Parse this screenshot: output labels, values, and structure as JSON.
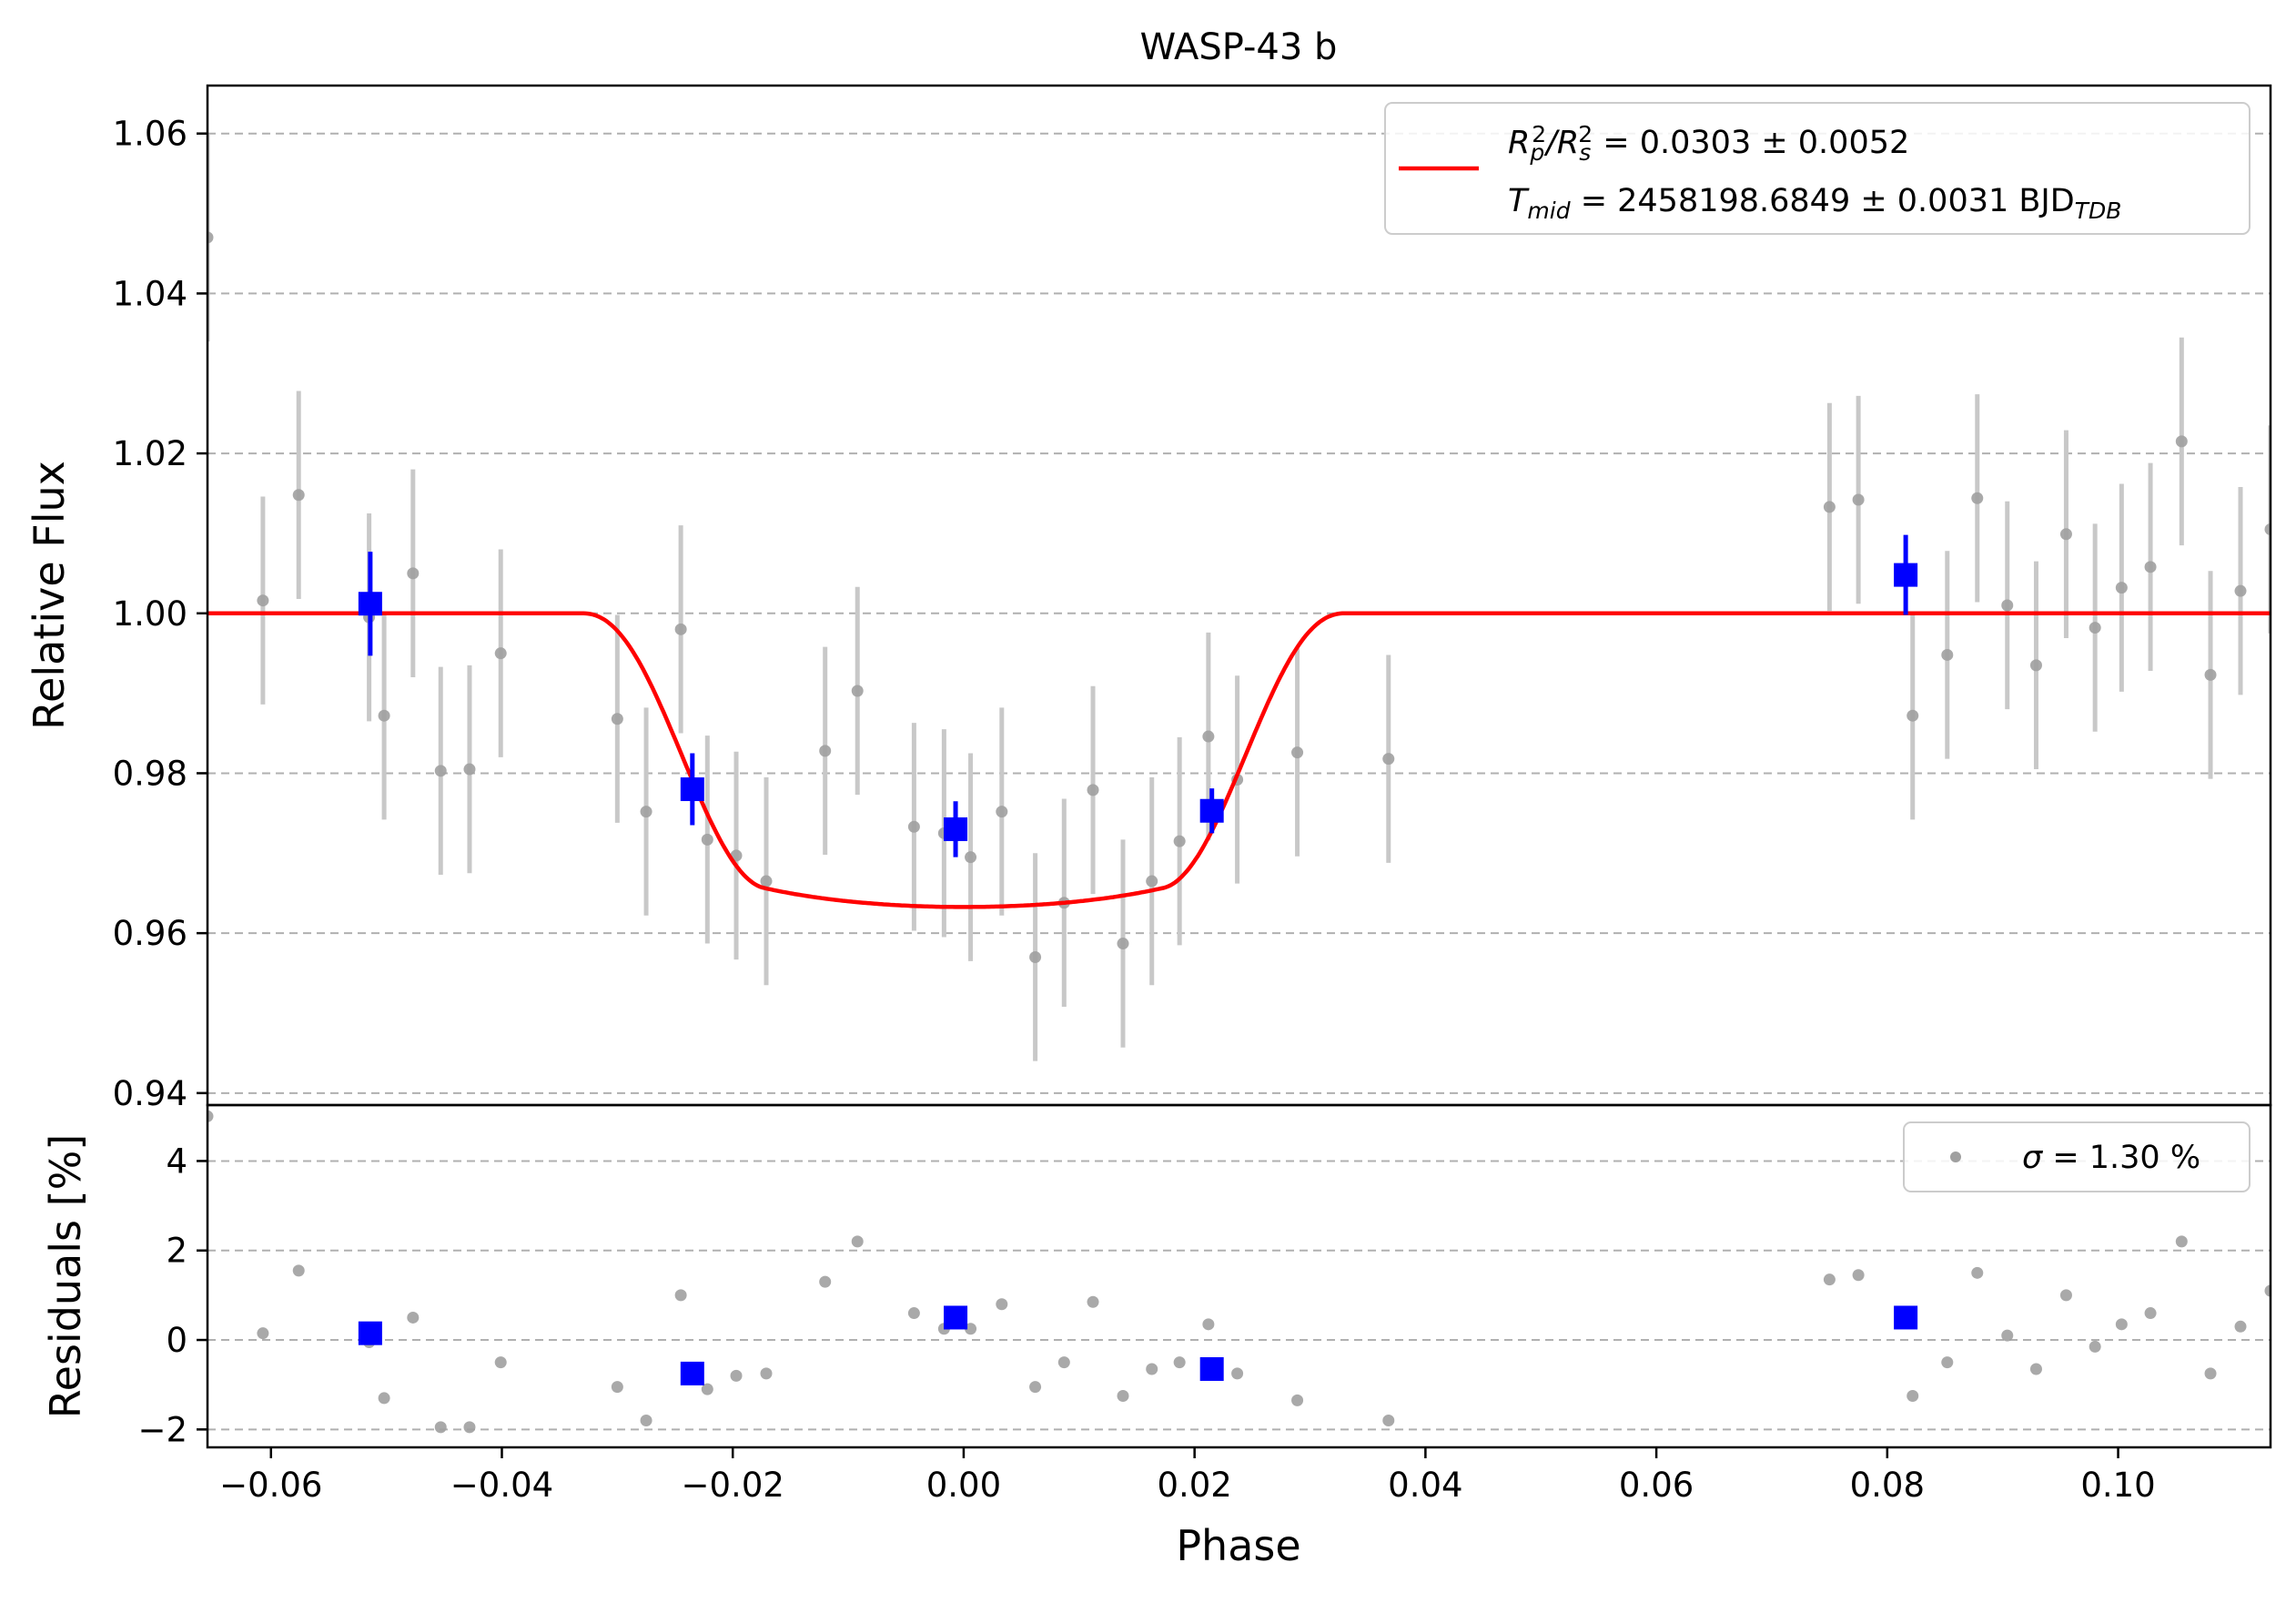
{
  "chart_data": {
    "type": "scatter",
    "title": "WASP-43 b",
    "xlabel": "Phase",
    "xlim": [
      -0.0655,
      0.1132
    ],
    "top_panel": {
      "ylabel": "Relative Flux",
      "ylim": [
        0.9385,
        1.066
      ],
      "yticks": [
        0.94,
        0.96,
        0.98,
        1.0,
        1.02,
        1.04,
        1.06
      ],
      "ytick_labels": [
        "0.94",
        "0.96",
        "0.98",
        "1.00",
        "1.02",
        "1.04",
        "1.06"
      ],
      "grid": "y-dashed",
      "legend": {
        "placement": "top-right",
        "color": "#ff0000",
        "line1": {
          "prefix": "R",
          "sub1": "p",
          "sup1": "2",
          "slash": "/R",
          "sub2": "s",
          "sup2": "2",
          "value": " = 0.0303 ± 0.0052"
        },
        "line2": {
          "prefix": "T",
          "sub1": "mid",
          "value": " = 2458198.6849 ± 0.0031 BJD",
          "sub2": "TDB"
        }
      },
      "model": {
        "color": "#ff0000",
        "baseline": 1.0,
        "depth": 0.0303,
        "limb_darkening": [
          0.4,
          0.25
        ],
        "t_ingress_start": 0.033,
        "t_full": 0.0173
      }
    },
    "bottom_panel": {
      "ylabel": "Residuals [%]",
      "ylim": [
        -2.4,
        5.25
      ],
      "yticks": [
        -2,
        0,
        2,
        4
      ],
      "ytick_labels": [
        "−2",
        "0",
        "2",
        "4"
      ],
      "grid": "y-dashed",
      "legend": {
        "placement": "top-right",
        "symbol": "σ",
        "text": " = 1.30 %"
      }
    },
    "xticks": [
      -0.06,
      -0.04,
      -0.02,
      0.0,
      0.02,
      0.04,
      0.06,
      0.08,
      0.1
    ],
    "xtick_labels": [
      "−0.06",
      "−0.04",
      "−0.02",
      "0.00",
      "0.02",
      "0.04",
      "0.06",
      "0.08",
      "0.10"
    ],
    "series": [
      {
        "kind": "raw",
        "color": "#a0a0a0",
        "error_color": "#c8c8c8",
        "x": [
          -0.0655,
          -0.0607,
          -0.0576,
          -0.0515,
          -0.0502,
          -0.0477,
          -0.0453,
          -0.0428,
          -0.0401,
          -0.03,
          -0.0275,
          -0.0245,
          -0.0222,
          -0.0197,
          -0.0171,
          -0.012,
          -0.0092,
          -0.0043,
          -0.0017,
          0.0006,
          0.0033,
          0.0062,
          0.0087,
          0.0112,
          0.0138,
          0.0163,
          0.0187,
          0.0212,
          0.0237,
          0.0289,
          0.0368,
          0.075,
          0.0775,
          0.0822,
          0.0852,
          0.0878,
          0.0904,
          0.0929,
          0.0955,
          0.098,
          0.1003,
          0.1028,
          0.1055,
          0.108,
          0.1106,
          0.1132
        ],
        "flux": [
          1.047,
          1.0016,
          1.0148,
          0.9995,
          0.9872,
          1.005,
          0.9803,
          0.9805,
          0.995,
          0.9868,
          0.9752,
          0.998,
          0.9717,
          0.9697,
          0.9665,
          0.9828,
          0.9903,
          0.9733,
          0.9725,
          0.9695,
          0.9752,
          0.957,
          0.9638,
          0.9779,
          0.9587,
          0.9665,
          0.9715,
          0.9846,
          0.9792,
          0.9826,
          0.9818,
          1.0133,
          1.0142,
          0.9872,
          0.9948,
          1.0144,
          1.001,
          0.9935,
          1.0099,
          0.9982,
          1.0032,
          1.0058,
          1.0215,
          0.9923,
          1.0028,
          1.0105
        ],
        "flux_err": [
          0.013,
          0.013,
          0.013,
          0.013,
          0.013,
          0.013,
          0.013,
          0.013,
          0.013,
          0.013,
          0.013,
          0.013,
          0.013,
          0.013,
          0.013,
          0.013,
          0.013,
          0.013,
          0.013,
          0.013,
          0.013,
          0.013,
          0.013,
          0.013,
          0.013,
          0.013,
          0.013,
          0.013,
          0.013,
          0.013,
          0.013,
          0.013,
          0.013,
          0.013,
          0.013,
          0.013,
          0.013,
          0.013,
          0.013,
          0.013,
          0.013,
          0.013,
          0.013,
          0.013,
          0.013,
          0.013
        ],
        "residual": [
          5.0,
          0.15,
          1.55,
          -0.05,
          -1.3,
          0.5,
          -1.95,
          -1.95,
          -0.5,
          -1.05,
          -1.8,
          1.0,
          -1.1,
          -0.8,
          -0.75,
          1.3,
          2.2,
          0.6,
          0.25,
          0.25,
          0.8,
          -1.05,
          -0.5,
          0.85,
          -1.25,
          -0.65,
          -0.5,
          0.35,
          -0.75,
          -1.35,
          -1.8,
          1.35,
          1.45,
          -1.25,
          -0.5,
          1.5,
          0.1,
          -0.65,
          1.0,
          -0.15,
          0.35,
          0.6,
          2.2,
          -0.75,
          0.3,
          1.1
        ]
      },
      {
        "kind": "binned",
        "color": "#0000ff",
        "x": [
          -0.0514,
          -0.0235,
          -0.0007,
          0.0215,
          0.0816
        ],
        "flux": [
          1.0012,
          0.978,
          0.973,
          0.9753,
          1.0048
        ],
        "flux_err": [
          0.0065,
          0.0045,
          0.0035,
          0.0028,
          0.005
        ],
        "residual": [
          0.15,
          -0.75,
          0.5,
          -0.65,
          0.5
        ]
      }
    ]
  }
}
